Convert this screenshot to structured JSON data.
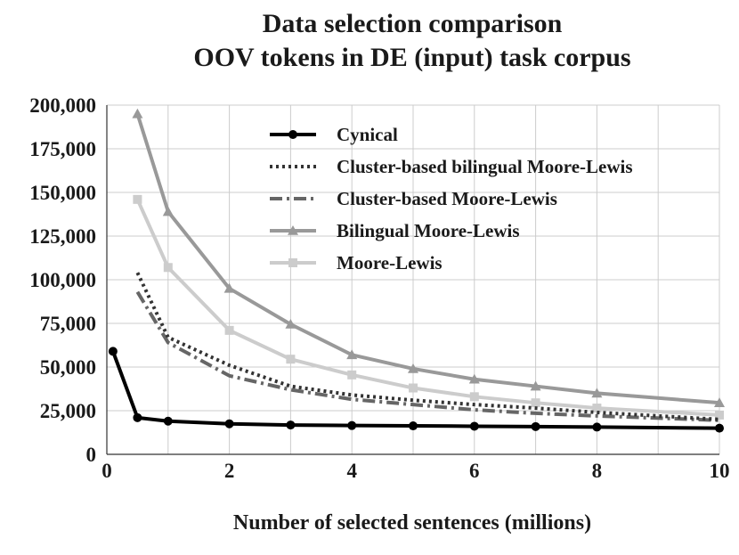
{
  "chart_data": {
    "type": "line",
    "title": "Data selection comparison",
    "subtitle": "OOV tokens in DE (input) task corpus",
    "xlabel": "Number of selected sentences (millions)",
    "ylabel": "",
    "xlim": [
      0,
      10
    ],
    "ylim": [
      0,
      200000
    ],
    "xticks": [
      0,
      2,
      4,
      6,
      8,
      10
    ],
    "xtick_labels": [
      "0",
      "2",
      "4",
      "6",
      "8",
      "10"
    ],
    "yticks": [
      0,
      25000,
      50000,
      75000,
      100000,
      125000,
      150000,
      175000,
      200000
    ],
    "ytick_labels": [
      "0",
      "25,000",
      "50,000",
      "75,000",
      "100,000",
      "125,000",
      "150,000",
      "175,000",
      "200,000"
    ],
    "grid": true,
    "legend_position": "top-right",
    "series": [
      {
        "name": "Cynical",
        "color": "#000000",
        "dash": "solid",
        "marker": "circle",
        "x": [
          0.1,
          0.5,
          1,
          2,
          3,
          4,
          5,
          6,
          7,
          8,
          10
        ],
        "y": [
          59000,
          21000,
          19000,
          17500,
          16800,
          16500,
          16300,
          16100,
          15900,
          15600,
          15000
        ]
      },
      {
        "name": "Cluster-based bilingual Moore-Lewis",
        "color": "#333333",
        "dash": "dotted",
        "marker": "none",
        "x": [
          0.5,
          1,
          2,
          3,
          4,
          5,
          6,
          7,
          8,
          10
        ],
        "y": [
          104000,
          67000,
          51000,
          39000,
          34000,
          31000,
          28500,
          26500,
          24000,
          20000
        ]
      },
      {
        "name": "Cluster-based Moore-Lewis",
        "color": "#666666",
        "dash": "dashdot",
        "marker": "none",
        "x": [
          0.5,
          1,
          2,
          3,
          4,
          5,
          6,
          7,
          8,
          10
        ],
        "y": [
          93000,
          64000,
          45000,
          37000,
          31500,
          28500,
          25500,
          23500,
          22000,
          19500
        ]
      },
      {
        "name": "Bilingual Moore-Lewis",
        "color": "#999999",
        "dash": "solid",
        "marker": "triangle",
        "x": [
          0.5,
          1,
          2,
          3,
          4,
          5,
          6,
          7,
          8,
          10
        ],
        "y": [
          195000,
          139000,
          95000,
          74500,
          57000,
          49000,
          43000,
          39000,
          35000,
          29500
        ]
      },
      {
        "name": "Moore-Lewis",
        "color": "#cccccc",
        "dash": "solid",
        "marker": "square",
        "x": [
          0.5,
          1,
          2,
          3,
          4,
          5,
          6,
          7,
          8,
          10
        ],
        "y": [
          146000,
          107000,
          71000,
          54500,
          45500,
          38000,
          33000,
          29500,
          26500,
          22500
        ]
      }
    ]
  }
}
